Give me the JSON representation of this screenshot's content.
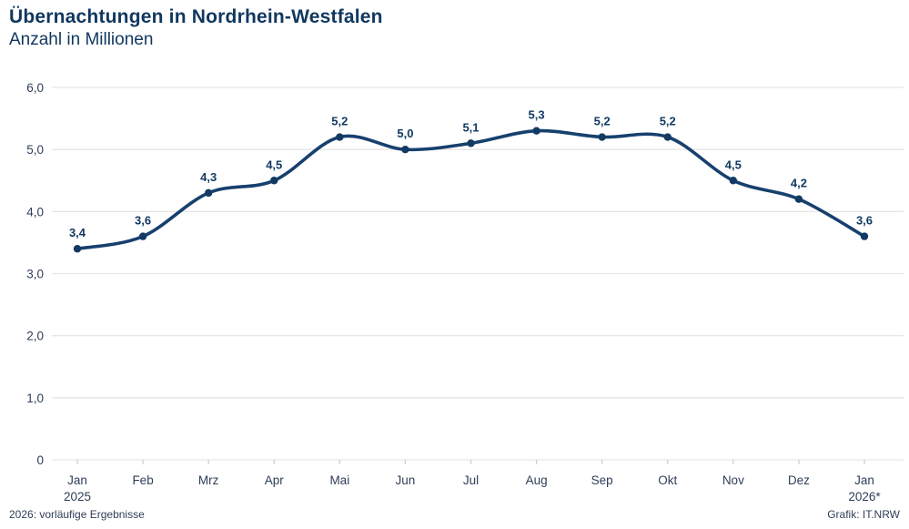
{
  "header": {
    "title": "Übernachtungen in Nordrhein-Westfalen",
    "subtitle": "Anzahl in Millionen"
  },
  "chart_data": {
    "type": "line",
    "title": "Übernachtungen in Nordrhein-Westfalen",
    "subtitle": "Anzahl in Millionen",
    "categories": [
      {
        "label": "Jan",
        "sublabel": "2025"
      },
      {
        "label": "Feb",
        "sublabel": ""
      },
      {
        "label": "Mrz",
        "sublabel": ""
      },
      {
        "label": "Apr",
        "sublabel": ""
      },
      {
        "label": "Mai",
        "sublabel": ""
      },
      {
        "label": "Jun",
        "sublabel": ""
      },
      {
        "label": "Jul",
        "sublabel": ""
      },
      {
        "label": "Aug",
        "sublabel": ""
      },
      {
        "label": "Sep",
        "sublabel": ""
      },
      {
        "label": "Okt",
        "sublabel": ""
      },
      {
        "label": "Nov",
        "sublabel": ""
      },
      {
        "label": "Dez",
        "sublabel": ""
      },
      {
        "label": "Jan",
        "sublabel": "2026*"
      }
    ],
    "values": [
      3.4,
      3.6,
      4.3,
      4.5,
      5.2,
      5.0,
      5.1,
      5.3,
      5.2,
      5.2,
      4.5,
      4.2,
      3.6
    ],
    "value_labels": [
      "3,4",
      "3,6",
      "4,3",
      "4,5",
      "5,2",
      "5,0",
      "5,1",
      "5,3",
      "5,2",
      "5,2",
      "4,5",
      "4,2",
      "3,6"
    ],
    "xlabel": "",
    "ylabel": "",
    "ylim": [
      0,
      6
    ],
    "yticks": [
      0,
      1,
      2,
      3,
      4,
      5,
      6
    ],
    "ytick_labels": [
      "0",
      "1,0",
      "2,0",
      "3,0",
      "4,0",
      "5,0",
      "6,0"
    ],
    "grid": true,
    "legend": false,
    "colors": {
      "line": "#17406e",
      "marker": "#123a63",
      "data_label": "#123a63",
      "gridline": "#e6e6e6",
      "axis_tick": "#cfcfcf",
      "tick_label": "#2f3e58"
    }
  },
  "footer": {
    "left_note": "2026: vorläufige Ergebnisse",
    "right_note": "Grafik: IT.NRW"
  }
}
